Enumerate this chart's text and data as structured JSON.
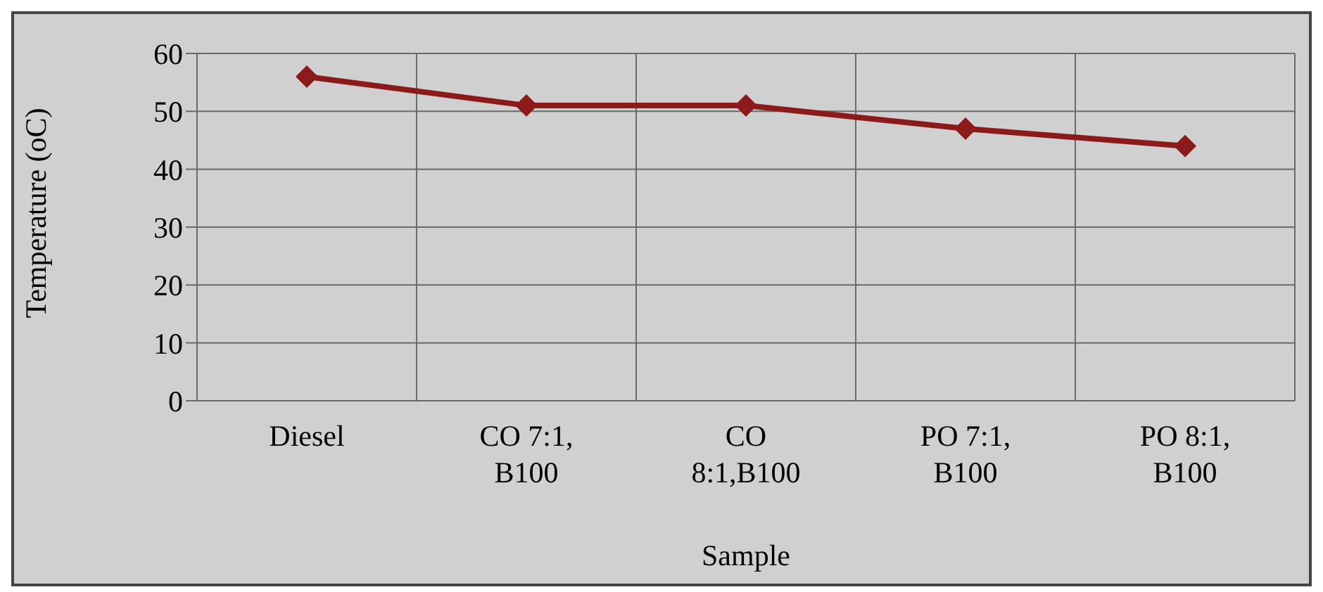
{
  "chart_data": {
    "type": "line",
    "xlabel": "Sample",
    "ylabel": "Temperature (oC)",
    "categories": [
      "Diesel",
      "CO 7:1, B100",
      "CO 8:1,B100",
      "PO 7:1, B100",
      "PO 8:1, B100"
    ],
    "series": [
      {
        "color": "#8b1a1a",
        "values": [
          56,
          51,
          51,
          47,
          44
        ]
      }
    ],
    "ylim": [
      0,
      60
    ],
    "yticks": [
      0,
      10,
      20,
      30,
      40,
      50,
      60
    ],
    "grid": true,
    "marker": "diamond",
    "line_style": "solid",
    "legend": false
  }
}
